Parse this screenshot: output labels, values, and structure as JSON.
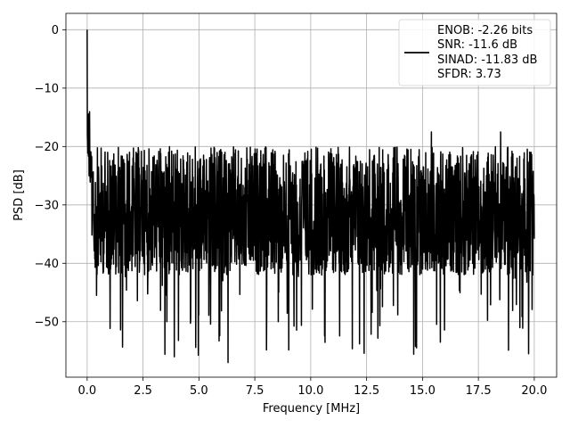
{
  "chart_data": {
    "type": "line",
    "title": "",
    "xlabel": "Frequency [MHz]",
    "ylabel": "PSD [dB]",
    "xlim": [
      -0.95,
      21.0
    ],
    "ylim": [
      -59.5,
      2.8
    ],
    "grid": true,
    "legend_position": "top-right",
    "x_ticks": [
      0.0,
      2.5,
      5.0,
      7.5,
      10.0,
      12.5,
      15.0,
      17.5,
      20.0
    ],
    "x_tick_labels": [
      "0.0",
      "2.5",
      "5.0",
      "7.5",
      "10.0",
      "12.5",
      "15.0",
      "17.5",
      "20.0"
    ],
    "y_ticks": [
      0,
      -10,
      -20,
      -30,
      -40,
      -50
    ],
    "y_tick_labels": [
      "0",
      "−10",
      "−20",
      "−30",
      "−40",
      "−50"
    ],
    "series": [
      {
        "name": "ENOB: -2.26 bits",
        "color": "#000000",
        "legend_lines": [
          "ENOB: -2.26 bits",
          "SNR: -11.6 dB",
          "SINAD: -11.83 dB",
          "SFDR: 3.73"
        ],
        "noise_band": {
          "x_start": 0.0,
          "x_end": 20.0,
          "points": 2048,
          "median_db": -29,
          "upper_db": -18,
          "lower_db": -57
        },
        "peak": {
          "x": 0.0,
          "y": 0.0
        },
        "notable_dips": [
          {
            "x": 3.9,
            "y": -56
          },
          {
            "x": 6.3,
            "y": -57
          },
          {
            "x": 15.8,
            "y": -53.5
          },
          {
            "x": 19.75,
            "y": -55.5
          }
        ],
        "notable_peaks": [
          {
            "x": 18.5,
            "y": -17.5
          },
          {
            "x": 15.4,
            "y": -17.5
          }
        ]
      }
    ]
  }
}
